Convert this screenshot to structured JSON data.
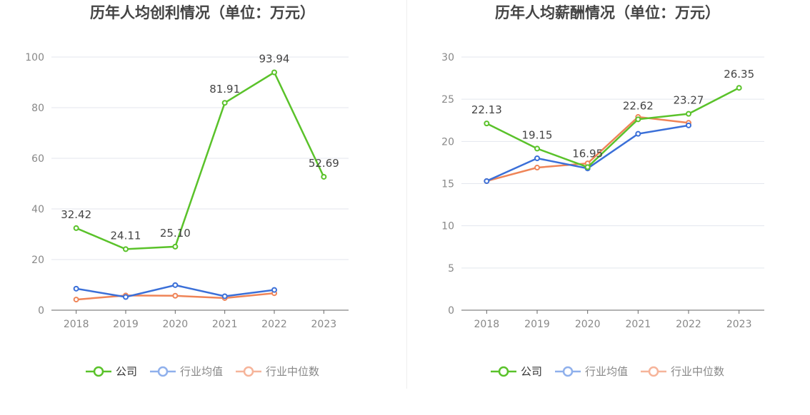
{
  "colors": {
    "company": "#5ac22a",
    "industry_avg": "#3a6fd8",
    "industry_median": "#ef8457",
    "legend_avg": "#8fb0ec",
    "legend_median": "#f6b49a"
  },
  "chart_data": [
    {
      "type": "line",
      "title": "历年人均创利情况（单位：万元）",
      "categories": [
        "2018",
        "2019",
        "2020",
        "2021",
        "2022",
        "2023"
      ],
      "ylim": [
        0,
        100
      ],
      "yticks": [
        0,
        20,
        40,
        60,
        80,
        100
      ],
      "grid": true,
      "legend_position": "bottom",
      "series": [
        {
          "name": "公司",
          "values": [
            32.42,
            24.11,
            25.1,
            81.91,
            93.94,
            52.69
          ],
          "labels": [
            "32.42",
            "24.11",
            "25.10",
            "81.91",
            "93.94",
            "52.69"
          ]
        },
        {
          "name": "行业均值",
          "values": [
            8.5,
            5.2,
            9.9,
            5.5,
            8.0,
            null
          ]
        },
        {
          "name": "行业中位数",
          "values": [
            4.2,
            5.8,
            5.7,
            4.8,
            6.7,
            null
          ]
        }
      ]
    },
    {
      "type": "line",
      "title": "历年人均薪酬情况（单位：万元）",
      "categories": [
        "2018",
        "2019",
        "2020",
        "2021",
        "2022",
        "2023"
      ],
      "ylim": [
        0,
        30
      ],
      "yticks": [
        0,
        5,
        10,
        15,
        20,
        25,
        30
      ],
      "grid": true,
      "legend_position": "bottom",
      "series": [
        {
          "name": "公司",
          "values": [
            22.13,
            19.15,
            16.95,
            22.62,
            23.27,
            26.35
          ],
          "labels": [
            "22.13",
            "19.15",
            "16.95",
            "22.62",
            "23.27",
            "26.35"
          ]
        },
        {
          "name": "行业均值",
          "values": [
            15.3,
            18.0,
            16.8,
            20.9,
            21.9,
            null
          ]
        },
        {
          "name": "行业中位数",
          "values": [
            15.3,
            16.9,
            17.4,
            22.9,
            22.2,
            null
          ]
        }
      ]
    }
  ]
}
